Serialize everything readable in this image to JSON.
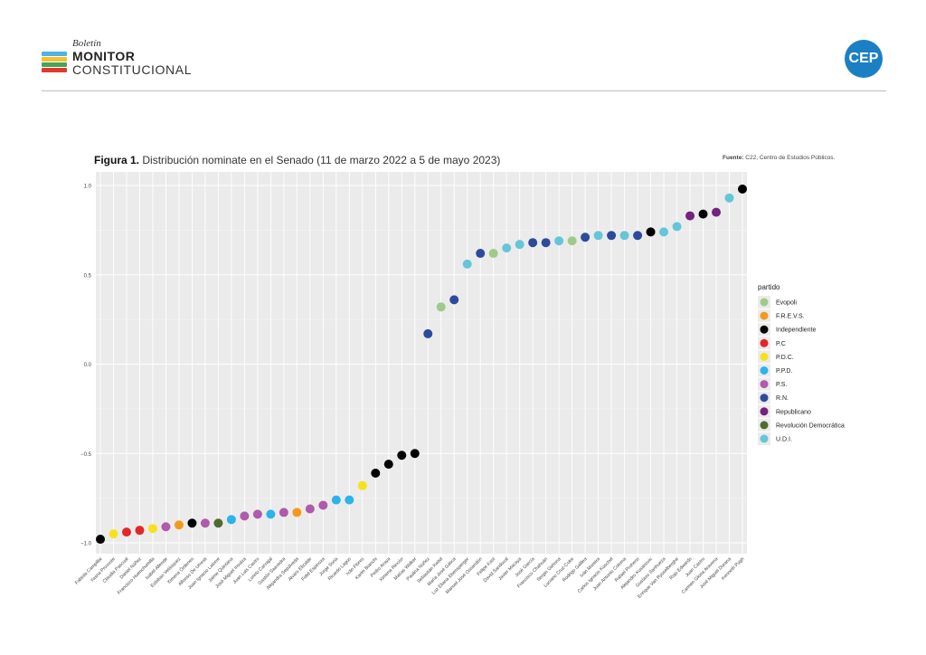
{
  "header": {
    "brand_small": "Boletín",
    "brand_bold": "MONITOR",
    "brand_light": "CONSTITUCIONAL",
    "logo_colors": [
      "#4fb3e6",
      "#f2c12e",
      "#4aa35a",
      "#e0392b"
    ],
    "cep": "CEP",
    "cep_color": "#1b7fc4"
  },
  "figure": {
    "label": "Figura 1.",
    "title": "Distribución nominate en el Senado (11 de marzo 2022 a 5 de mayo 2023)",
    "source_label": "Fuente:",
    "source_text": "C22, Centro de Estudios Públicos."
  },
  "chart_data": {
    "type": "scatter",
    "xlabel": "",
    "ylabel": "",
    "ylim": [
      -1.05,
      1.05
    ],
    "yticks": [
      1.0,
      0.5,
      0.0,
      -0.5,
      -1.0
    ],
    "ytick_labels": [
      "1.0",
      "0.5",
      "0.0",
      "−0.5",
      "−1.0"
    ],
    "grid": true,
    "legend_position": "right",
    "legend_title": "partido",
    "parties": [
      {
        "name": "Evopoli",
        "color": "#9ecb8a"
      },
      {
        "name": "F.R.E.V.S.",
        "color": "#f39a1e"
      },
      {
        "name": "Independiente",
        "color": "#000000"
      },
      {
        "name": "P.C",
        "color": "#e3262a"
      },
      {
        "name": "P.D.C.",
        "color": "#f6e21c"
      },
      {
        "name": "P.P.D.",
        "color": "#2ab4ea"
      },
      {
        "name": "P.S.",
        "color": "#b05aab"
      },
      {
        "name": "R.N.",
        "color": "#2c4b9b"
      },
      {
        "name": "Republicano",
        "color": "#73227f"
      },
      {
        "name": "Revolución Democrática",
        "color": "#4f6b2e"
      },
      {
        "name": "U.D.I.",
        "color": "#65c6d9"
      }
    ],
    "points": [
      {
        "name": "Fabiola Campillai",
        "party": "Independiente",
        "y": -0.98
      },
      {
        "name": "Yasna Provoste",
        "party": "P.D.C.",
        "y": -0.95
      },
      {
        "name": "Claudia Pascual",
        "party": "P.C",
        "y": -0.94
      },
      {
        "name": "Daniel Núñez",
        "party": "P.C",
        "y": -0.93
      },
      {
        "name": "Francisco Huenchumilla",
        "party": "P.D.C.",
        "y": -0.92
      },
      {
        "name": "Isabel Allende",
        "party": "P.S.",
        "y": -0.91
      },
      {
        "name": "Esteban Velásquez",
        "party": "F.R.E.V.S.",
        "y": -0.9
      },
      {
        "name": "Ximena Órdenes",
        "party": "Independiente",
        "y": -0.89
      },
      {
        "name": "Alfonso De Urresti",
        "party": "P.S.",
        "y": -0.89
      },
      {
        "name": "Juan Ignacio Latorre",
        "party": "Revolución Democrática",
        "y": -0.89
      },
      {
        "name": "Jaime Quintana",
        "party": "P.P.D.",
        "y": -0.87
      },
      {
        "name": "José Miguel Insulza",
        "party": "P.S.",
        "y": -0.85
      },
      {
        "name": "Juan Luis Castro",
        "party": "P.S.",
        "y": -0.84
      },
      {
        "name": "Loreto Carvajal",
        "party": "P.P.D.",
        "y": -0.84
      },
      {
        "name": "Gastón Saavedra",
        "party": "P.S.",
        "y": -0.83
      },
      {
        "name": "Alejandra Sepúlveda",
        "party": "F.R.E.V.S.",
        "y": -0.83
      },
      {
        "name": "Alvaro Elizalde",
        "party": "P.S.",
        "y": -0.81
      },
      {
        "name": "Fidel Espinoza",
        "party": "P.S.",
        "y": -0.79
      },
      {
        "name": "Jorge Soria",
        "party": "P.P.D.",
        "y": -0.76
      },
      {
        "name": "Ricardo Lagos",
        "party": "P.P.D.",
        "y": -0.76
      },
      {
        "name": "Iván Flores",
        "party": "P.D.C.",
        "y": -0.68
      },
      {
        "name": "Karim Bianchi",
        "party": "Independiente",
        "y": -0.61
      },
      {
        "name": "Pedro Araya",
        "party": "Independiente",
        "y": -0.56
      },
      {
        "name": "Ximena Rincón",
        "party": "Independiente",
        "y": -0.51
      },
      {
        "name": "Matías Walker",
        "party": "Independiente",
        "y": -0.5
      },
      {
        "name": "Paulina Núñez",
        "party": "R.N.",
        "y": 0.17
      },
      {
        "name": "Sebastián Keitel",
        "party": "Evopoli",
        "y": 0.32
      },
      {
        "name": "María José Gatica",
        "party": "R.N.",
        "y": 0.36
      },
      {
        "name": "Luz Eliana Ebensperger",
        "party": "U.D.I.",
        "y": 0.56
      },
      {
        "name": "Manuel José Ossandón",
        "party": "R.N.",
        "y": 0.62
      },
      {
        "name": "Felipe Kast",
        "party": "Evopoli",
        "y": 0.62
      },
      {
        "name": "David Sandoval",
        "party": "U.D.I.",
        "y": 0.65
      },
      {
        "name": "Javier Macaya",
        "party": "U.D.I.",
        "y": 0.67
      },
      {
        "name": "José García",
        "party": "R.N.",
        "y": 0.68
      },
      {
        "name": "Francisco Chahuán",
        "party": "R.N.",
        "y": 0.68
      },
      {
        "name": "Sergio Gahona",
        "party": "U.D.I.",
        "y": 0.69
      },
      {
        "name": "Luciano Cruz-Coke",
        "party": "Evopoli",
        "y": 0.69
      },
      {
        "name": "Rodrigo Galilea",
        "party": "R.N.",
        "y": 0.71
      },
      {
        "name": "Iván Moreira",
        "party": "U.D.I.",
        "y": 0.72
      },
      {
        "name": "Carlos Ignacio Kuschel",
        "party": "R.N.",
        "y": 0.72
      },
      {
        "name": "Juan Antonio Coloma",
        "party": "U.D.I.",
        "y": 0.72
      },
      {
        "name": "Rafael Prohens",
        "party": "R.N.",
        "y": 0.72
      },
      {
        "name": "Alejandro Kusanovic",
        "party": "Independiente",
        "y": 0.74
      },
      {
        "name": "Gustavo Sanhueza",
        "party": "U.D.I.",
        "y": 0.74
      },
      {
        "name": "Enrique Van Rysselberghe",
        "party": "U.D.I.",
        "y": 0.77
      },
      {
        "name": "Rojo Edwards",
        "party": "Republicano",
        "y": 0.83
      },
      {
        "name": "Juan Castro",
        "party": "Independiente",
        "y": 0.84
      },
      {
        "name": "Carmen Gloria Aravena",
        "party": "Republicano",
        "y": 0.85
      },
      {
        "name": "José Miguel Durana",
        "party": "U.D.I.",
        "y": 0.93
      },
      {
        "name": "Kenneth Pugh",
        "party": "Independiente",
        "y": 0.98
      }
    ]
  }
}
